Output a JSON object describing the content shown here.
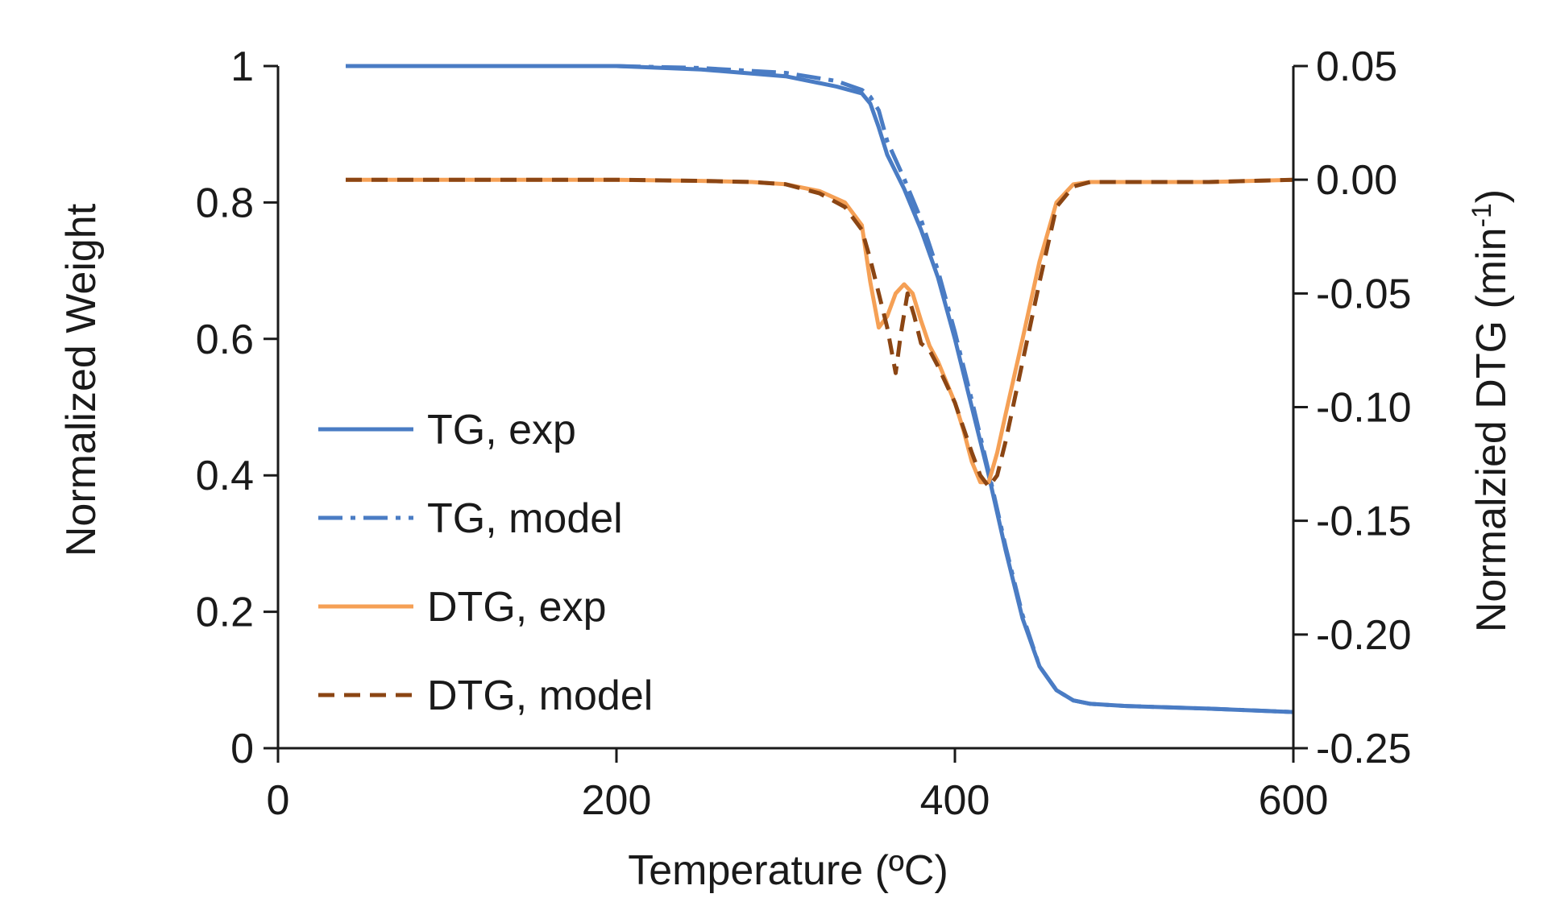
{
  "chart_data": {
    "type": "line",
    "xlabel": "Temperature (ºC)",
    "ylabel_left": "Normalized Weight",
    "ylabel_right_prefix": "Normalzied DTG (min",
    "ylabel_right_sup": "-1",
    "ylabel_right_suffix": ")",
    "xlim": [
      0,
      600
    ],
    "ylim_left": [
      0,
      1
    ],
    "ylim_right": [
      -0.25,
      0.05
    ],
    "x_ticks": [
      0,
      200,
      400,
      600
    ],
    "x_tick_labels": [
      "0",
      "200",
      "400",
      "600"
    ],
    "y_left_ticks": [
      0,
      0.2,
      0.4,
      0.6,
      0.8,
      1
    ],
    "y_left_tick_labels": [
      "0",
      "0.2",
      "0.4",
      "0.6",
      "0.8",
      "1"
    ],
    "y_right_ticks": [
      -0.25,
      -0.2,
      -0.15,
      -0.1,
      -0.05,
      0.0,
      0.05
    ],
    "y_right_tick_labels": [
      "-0.25",
      "-0.20",
      "-0.15",
      "-0.10",
      "-0.05",
      "0.00",
      "0.05"
    ],
    "grid": false,
    "legend_position": "left-middle",
    "series": [
      {
        "name": "TG, exp",
        "axis": "left",
        "color": "#4a7cc4",
        "style": "solid",
        "x": [
          40,
          100,
          200,
          250,
          300,
          330,
          345,
          350,
          355,
          360,
          370,
          380,
          390,
          400,
          410,
          420,
          430,
          440,
          450,
          460,
          470,
          480,
          500,
          550,
          600
        ],
        "y": [
          1.0,
          1.0,
          1.0,
          0.995,
          0.985,
          0.97,
          0.96,
          0.945,
          0.91,
          0.87,
          0.82,
          0.76,
          0.69,
          0.6,
          0.5,
          0.4,
          0.29,
          0.19,
          0.12,
          0.085,
          0.07,
          0.065,
          0.062,
          0.058,
          0.053
        ]
      },
      {
        "name": "TG, model",
        "axis": "left",
        "color": "#4a7cc4",
        "style": "dashdot",
        "x": [
          40,
          100,
          200,
          250,
          300,
          330,
          345,
          350,
          355,
          360,
          370,
          380,
          390,
          400,
          410,
          420,
          430,
          440,
          450,
          460,
          470,
          480,
          500,
          550,
          600
        ],
        "y": [
          1.0,
          1.0,
          1.0,
          0.997,
          0.99,
          0.978,
          0.965,
          0.955,
          0.935,
          0.89,
          0.835,
          0.775,
          0.7,
          0.61,
          0.51,
          0.405,
          0.295,
          0.195,
          0.12,
          0.085,
          0.07,
          0.065,
          0.062,
          0.058,
          0.053
        ]
      },
      {
        "name": "DTG, exp",
        "axis": "right",
        "color": "#f5a055",
        "style": "solid",
        "x": [
          40,
          100,
          200,
          250,
          280,
          300,
          320,
          335,
          345,
          350,
          355,
          360,
          365,
          370,
          375,
          380,
          385,
          390,
          400,
          405,
          410,
          415,
          420,
          425,
          430,
          440,
          450,
          460,
          470,
          480,
          500,
          550,
          600
        ],
        "y": [
          0.0,
          0.0,
          0.0,
          -0.0005,
          -0.001,
          -0.002,
          -0.005,
          -0.01,
          -0.02,
          -0.045,
          -0.065,
          -0.06,
          -0.05,
          -0.046,
          -0.05,
          -0.062,
          -0.073,
          -0.08,
          -0.098,
          -0.11,
          -0.124,
          -0.133,
          -0.133,
          -0.12,
          -0.103,
          -0.07,
          -0.036,
          -0.01,
          -0.002,
          -0.001,
          -0.001,
          -0.001,
          0.0
        ]
      },
      {
        "name": "DTG, model",
        "axis": "right",
        "color": "#8b4513",
        "style": "dashed",
        "x": [
          40,
          100,
          200,
          250,
          280,
          300,
          320,
          335,
          345,
          350,
          355,
          360,
          365,
          368,
          372,
          376,
          380,
          385,
          390,
          400,
          410,
          415,
          420,
          425,
          430,
          440,
          450,
          460,
          470,
          480,
          500,
          550,
          600
        ],
        "y": [
          0.0,
          0.0,
          0.0,
          -0.0005,
          -0.001,
          -0.002,
          -0.006,
          -0.012,
          -0.022,
          -0.035,
          -0.05,
          -0.065,
          -0.085,
          -0.068,
          -0.05,
          -0.06,
          -0.072,
          -0.075,
          -0.082,
          -0.098,
          -0.12,
          -0.13,
          -0.135,
          -0.13,
          -0.115,
          -0.08,
          -0.045,
          -0.012,
          -0.003,
          -0.001,
          -0.001,
          -0.001,
          0.0
        ]
      }
    ]
  }
}
